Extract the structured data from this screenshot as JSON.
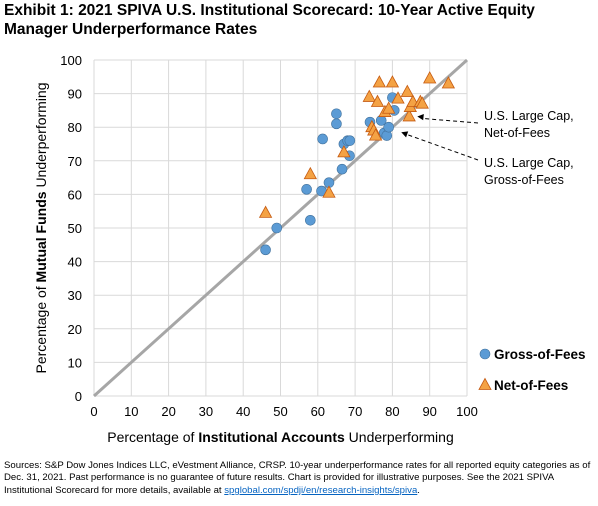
{
  "title": "Exhibit 1: 2021 SPIVA U.S. Institutional Scorecard: 10-Year Active Equity Manager Underperformance Rates",
  "footer": {
    "text1": "Sources: S&P Dow Jones Indices LLC, eVestment Alliance, CRSP. 10-year underperformance rates for all reported equity categories as of Dec. 31, 2021. Past performance is no guarantee of future results. Chart is provided for illustrative purposes. See the 2021 SPIVA Institutional Scorecard for more details, available at ",
    "link": "spglobal.com/spdji/en/research-insights/spiva",
    "text2": "."
  },
  "colors": {
    "gross": "#5b9bd5",
    "net": "#f4a244",
    "diagonal": "#a6a6a6",
    "grid": "#d9d9d9"
  },
  "chart_data": {
    "type": "scatter",
    "xlabel": {
      "pre": "Percentage of ",
      "bold": "Institutional Accounts",
      "post": " Underperforming"
    },
    "ylabel": {
      "pre": "Percentage of ",
      "bold": "Mutual Funds",
      "post": " Underperforming"
    },
    "xlim": [
      0,
      100
    ],
    "ylim": [
      0,
      100
    ],
    "xticks": [
      0,
      10,
      20,
      30,
      40,
      50,
      60,
      70,
      80,
      90,
      100
    ],
    "yticks": [
      0,
      10,
      20,
      30,
      40,
      50,
      60,
      70,
      80,
      90,
      100
    ],
    "grid": true,
    "diagonal": [
      [
        0,
        0
      ],
      [
        100,
        100
      ]
    ],
    "series": [
      {
        "name": "Gross-of-Fees",
        "marker": "circle",
        "points": [
          [
            46,
            43.5
          ],
          [
            49,
            50
          ],
          [
            57,
            61.5
          ],
          [
            58,
            52.3
          ],
          [
            61,
            61
          ],
          [
            61.3,
            76.5
          ],
          [
            63,
            63.5
          ],
          [
            65,
            84
          ],
          [
            65,
            81
          ],
          [
            66.5,
            67.5
          ],
          [
            67,
            75
          ],
          [
            68,
            76
          ],
          [
            68.5,
            71.5
          ],
          [
            68.6,
            76
          ],
          [
            74,
            81.5
          ],
          [
            77,
            82
          ],
          [
            77.8,
            78.3
          ],
          [
            78.5,
            77.5
          ],
          [
            79,
            80
          ],
          [
            80,
            88.8
          ],
          [
            80.5,
            85
          ]
        ]
      },
      {
        "name": "Net-of-Fees",
        "marker": "triangle",
        "points": [
          [
            46,
            54.5
          ],
          [
            58,
            66
          ],
          [
            63,
            60.5
          ],
          [
            67,
            72.5
          ],
          [
            73.8,
            89
          ],
          [
            74.5,
            80
          ],
          [
            75,
            79
          ],
          [
            75.5,
            77.5
          ],
          [
            76,
            87.5
          ],
          [
            76.5,
            93.3
          ],
          [
            78,
            84.5
          ],
          [
            79,
            85.5
          ],
          [
            80,
            93.3
          ],
          [
            81.5,
            88.5
          ],
          [
            84,
            90.5
          ],
          [
            84.5,
            83.2
          ],
          [
            84.8,
            86
          ],
          [
            85.5,
            87.5
          ],
          [
            87.5,
            87.5
          ],
          [
            88,
            87
          ],
          [
            90,
            94.5
          ],
          [
            95,
            93
          ]
        ]
      }
    ],
    "annotations": [
      {
        "lines": [
          "U.S. Large Cap,",
          "Net-of-Fees"
        ],
        "target": [
          84.8,
          83.2
        ]
      },
      {
        "lines": [
          "U.S. Large Cap,",
          "Gross-of-Fees"
        ],
        "target": [
          80.5,
          78.5
        ]
      }
    ],
    "legend": {
      "placement": "right"
    }
  }
}
